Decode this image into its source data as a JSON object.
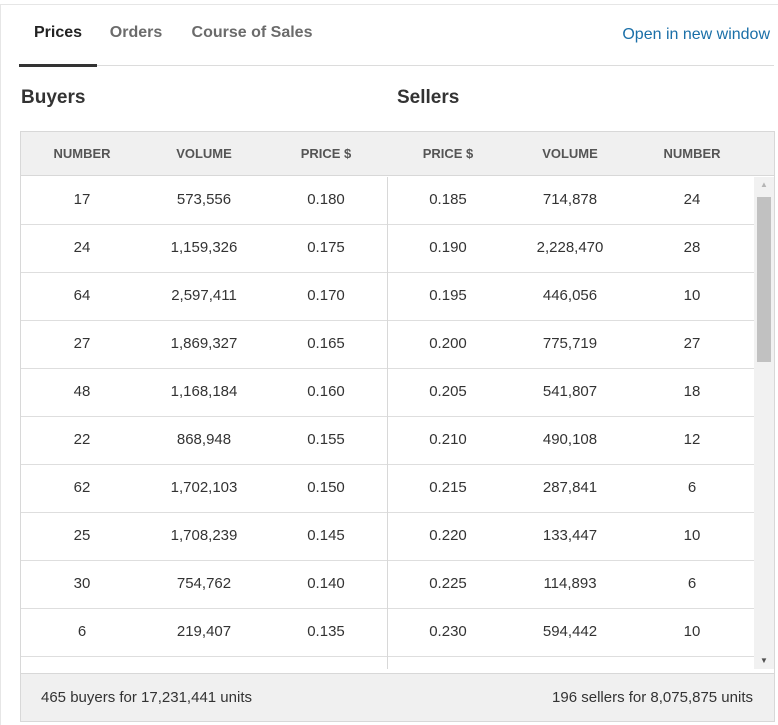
{
  "tabs": [
    {
      "label": "Prices",
      "active": true
    },
    {
      "label": "Orders",
      "active": false
    },
    {
      "label": "Course of Sales",
      "active": false
    }
  ],
  "open_link": "Open in new window",
  "buyers_title": "Buyers",
  "sellers_title": "Sellers",
  "columns": [
    "NUMBER",
    "VOLUME",
    "PRICE $",
    "PRICE $",
    "VOLUME",
    "NUMBER"
  ],
  "rows": [
    [
      "17",
      "573,556",
      "0.180",
      "0.185",
      "714,878",
      "24"
    ],
    [
      "24",
      "1,159,326",
      "0.175",
      "0.190",
      "2,228,470",
      "28"
    ],
    [
      "64",
      "2,597,411",
      "0.170",
      "0.195",
      "446,056",
      "10"
    ],
    [
      "27",
      "1,869,327",
      "0.165",
      "0.200",
      "775,719",
      "27"
    ],
    [
      "48",
      "1,168,184",
      "0.160",
      "0.205",
      "541,807",
      "18"
    ],
    [
      "22",
      "868,948",
      "0.155",
      "0.210",
      "490,108",
      "12"
    ],
    [
      "62",
      "1,702,103",
      "0.150",
      "0.215",
      "287,841",
      "6"
    ],
    [
      "25",
      "1,708,239",
      "0.145",
      "0.220",
      "133,447",
      "10"
    ],
    [
      "30",
      "754,762",
      "0.140",
      "0.225",
      "114,893",
      "6"
    ],
    [
      "6",
      "219,407",
      "0.135",
      "0.230",
      "594,442",
      "10"
    ],
    [
      "",
      "",
      "",
      "",
      "",
      ""
    ]
  ],
  "footer": {
    "buyers": "465 buyers for 17,231,441 units",
    "sellers": "196 sellers for 8,075,875 units"
  },
  "icons": {
    "scroll_up": "up-arrow-icon",
    "scroll_down": "down-arrow-icon"
  },
  "colors": {
    "link": "#1a6fa8",
    "header_bg": "#f0f0f0"
  }
}
